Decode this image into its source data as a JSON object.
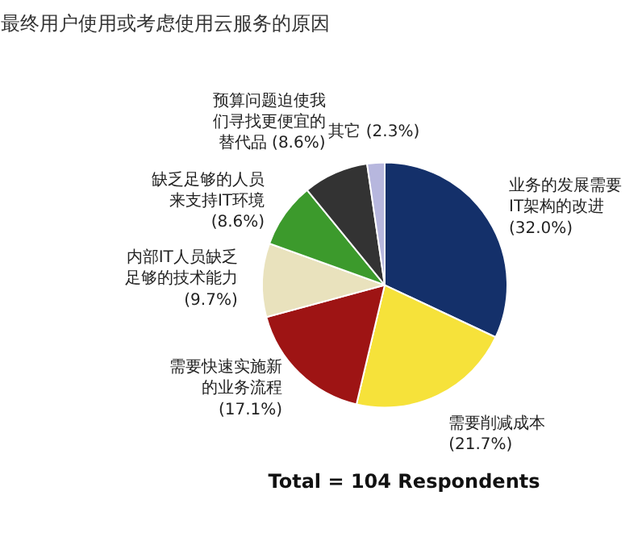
{
  "chart_data": {
    "type": "pie",
    "title": "最终用户使用或考虑使用云服务的原因",
    "categories": [
      "业务的发展需要IT架构的改进",
      "需要削减成本",
      "需要快速实施新的业务流程",
      "内部IT人员缺乏足够的技术能力",
      "缺乏足够的人员来支持IT环境",
      "预算问题迫使我们寻找更便宜的替代品",
      "其它"
    ],
    "values": [
      32.0,
      21.7,
      17.1,
      9.7,
      8.6,
      8.6,
      2.3
    ],
    "colors": [
      "#14306a",
      "#f6e23a",
      "#9e1414",
      "#e9e2bd",
      "#3c9a2c",
      "#333333",
      "#b7b7de"
    ],
    "value_labels": [
      "(32.0%)",
      "(21.7%)",
      "(17.1%)",
      "(9.7%)",
      "(8.6%)",
      "(8.6%)",
      "(2.3%)"
    ],
    "annotations": [
      "Total = 104 Respondents"
    ]
  }
}
